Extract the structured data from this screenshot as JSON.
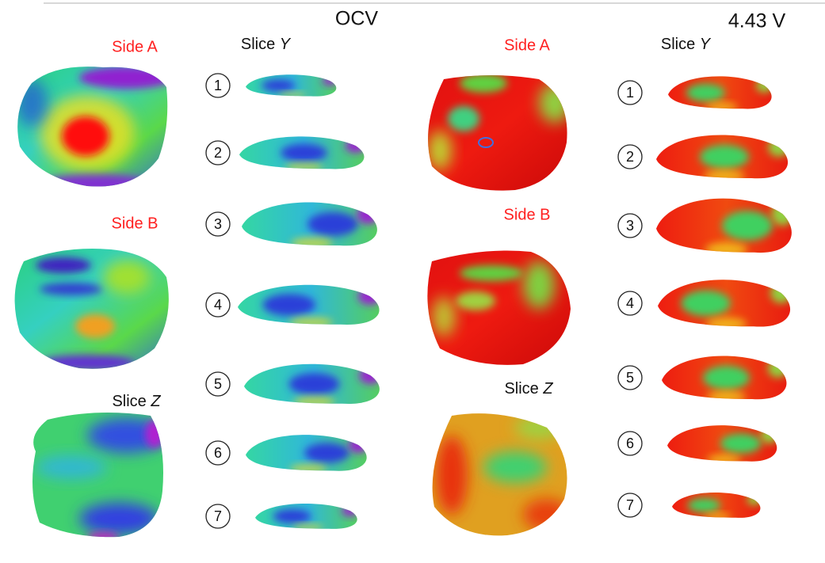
{
  "panels": [
    {
      "title": "OCV",
      "side_a": "Side A",
      "side_b": "Side B",
      "slice_y": {
        "prefix": "Slice ",
        "axis": "Y"
      },
      "slice_z": {
        "prefix": "Slice ",
        "axis": "Z"
      },
      "slices": [
        "1",
        "2",
        "3",
        "4",
        "5",
        "6",
        "7"
      ]
    },
    {
      "title": "4.43 V",
      "side_a": "Side A",
      "side_b": "Side B",
      "slice_y": {
        "prefix": "Slice ",
        "axis": "Y"
      },
      "slice_z": {
        "prefix": "Slice ",
        "axis": "Z"
      },
      "slices": [
        "1",
        "2",
        "3",
        "4",
        "5",
        "6",
        "7"
      ]
    }
  ]
}
